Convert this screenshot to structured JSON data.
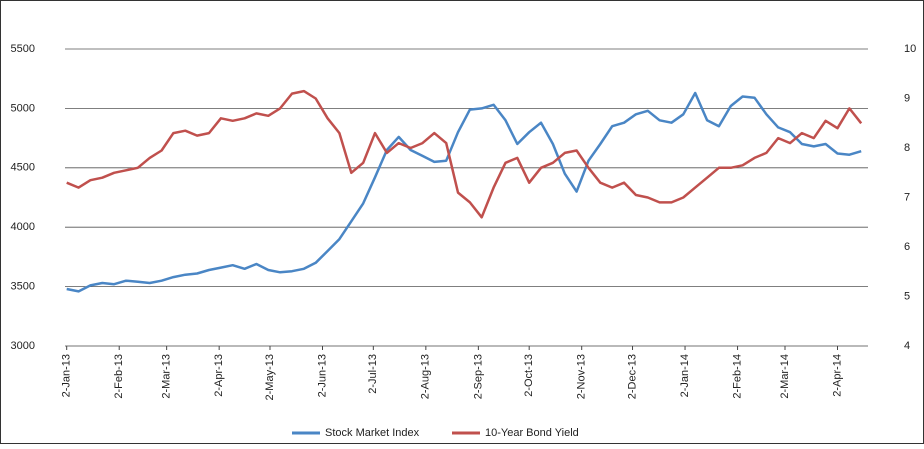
{
  "chart_data": {
    "type": "line",
    "x": [
      "2013-01-02",
      "2013-01-09",
      "2013-01-16",
      "2013-01-23",
      "2013-01-30",
      "2013-02-06",
      "2013-02-13",
      "2013-02-20",
      "2013-02-27",
      "2013-03-06",
      "2013-03-13",
      "2013-03-20",
      "2013-03-27",
      "2013-04-03",
      "2013-04-10",
      "2013-04-17",
      "2013-04-24",
      "2013-05-01",
      "2013-05-08",
      "2013-05-15",
      "2013-05-22",
      "2013-05-29",
      "2013-06-05",
      "2013-06-12",
      "2013-06-19",
      "2013-06-26",
      "2013-07-03",
      "2013-07-10",
      "2013-07-17",
      "2013-07-24",
      "2013-07-31",
      "2013-08-07",
      "2013-08-14",
      "2013-08-21",
      "2013-08-28",
      "2013-09-04",
      "2013-09-11",
      "2013-09-18",
      "2013-09-25",
      "2013-10-02",
      "2013-10-09",
      "2013-10-16",
      "2013-10-23",
      "2013-10-30",
      "2013-11-06",
      "2013-11-13",
      "2013-11-20",
      "2013-11-27",
      "2013-12-04",
      "2013-12-11",
      "2013-12-18",
      "2013-12-25",
      "2014-01-01",
      "2014-01-08",
      "2014-01-15",
      "2014-01-22",
      "2014-01-29",
      "2014-02-05",
      "2014-02-12",
      "2014-02-19",
      "2014-02-26",
      "2014-03-05",
      "2014-03-12",
      "2014-03-19",
      "2014-03-26",
      "2014-04-02",
      "2014-04-09",
      "2014-04-16"
    ],
    "series": [
      {
        "name": "Stock Market Index",
        "color": "#4a86c5",
        "values": [
          3480,
          3460,
          3510,
          3530,
          3520,
          3550,
          3540,
          3530,
          3550,
          3580,
          3600,
          3610,
          3640,
          3660,
          3680,
          3650,
          3690,
          3640,
          3620,
          3630,
          3650,
          3700,
          3800,
          3900,
          4050,
          4200,
          4420,
          4650,
          4760,
          4650,
          4600,
          4550,
          4560,
          4800,
          4990,
          5000,
          5030,
          4900,
          4700,
          4800,
          4880,
          4700,
          4450,
          4300,
          4560,
          4700,
          4850,
          4880,
          4950,
          4980,
          4900,
          4880,
          4950,
          5130,
          4900,
          4850,
          5020,
          5100,
          5090,
          4950,
          4840,
          4800,
          4700,
          4680,
          4700,
          4620,
          4610,
          4640
        ]
      },
      {
        "name": "10-Year Bond Yield",
        "color": "#c0504d",
        "axis": "y2",
        "values": [
          7.3,
          7.2,
          7.35,
          7.4,
          7.5,
          7.55,
          7.6,
          7.8,
          7.95,
          8.3,
          8.35,
          8.25,
          8.3,
          8.6,
          8.55,
          8.6,
          8.7,
          8.65,
          8.8,
          9.1,
          9.15,
          9.0,
          8.6,
          8.3,
          7.5,
          7.7,
          8.3,
          7.9,
          8.1,
          8.0,
          8.1,
          8.3,
          8.1,
          7.1,
          6.9,
          6.6,
          7.2,
          7.7,
          7.8,
          7.3,
          7.6,
          7.7,
          7.9,
          7.95,
          7.6,
          7.3,
          7.2,
          7.3,
          7.05,
          7.0,
          6.9,
          6.9,
          7.0,
          7.2,
          7.4,
          7.6,
          7.6,
          7.65,
          7.8,
          7.9,
          8.2,
          8.1,
          8.3,
          8.2,
          8.55,
          8.4,
          8.8,
          8.5
        ]
      }
    ],
    "xlim": [
      "2013-01-01",
      "2014-04-20"
    ],
    "xticks": [
      {
        "value": "2013-01-02",
        "label": "2-Jan-13"
      },
      {
        "value": "2013-02-02",
        "label": "2-Feb-13"
      },
      {
        "value": "2013-03-02",
        "label": "2-Mar-13"
      },
      {
        "value": "2013-04-02",
        "label": "2-Apr-13"
      },
      {
        "value": "2013-05-02",
        "label": "2-May-13"
      },
      {
        "value": "2013-06-02",
        "label": "2-Jun-13"
      },
      {
        "value": "2013-07-02",
        "label": "2-Jul-13"
      },
      {
        "value": "2013-08-02",
        "label": "2-Aug-13"
      },
      {
        "value": "2013-09-02",
        "label": "2-Sep-13"
      },
      {
        "value": "2013-10-02",
        "label": "2-Oct-13"
      },
      {
        "value": "2013-11-02",
        "label": "2-Nov-13"
      },
      {
        "value": "2013-12-02",
        "label": "2-Dec-13"
      },
      {
        "value": "2014-01-02",
        "label": "2-Jan-14"
      },
      {
        "value": "2014-02-02",
        "label": "2-Feb-14"
      },
      {
        "value": "2014-03-02",
        "label": "2-Mar-14"
      },
      {
        "value": "2014-04-02",
        "label": "2-Apr-14"
      }
    ],
    "ylim": [
      3000,
      5500
    ],
    "yticks": [
      3000,
      3500,
      4000,
      4500,
      5000,
      5500
    ],
    "y2lim": [
      4,
      10
    ],
    "y2ticks": [
      4,
      5,
      6,
      7,
      8,
      9,
      10
    ],
    "grid": true,
    "legend": "bottom"
  }
}
